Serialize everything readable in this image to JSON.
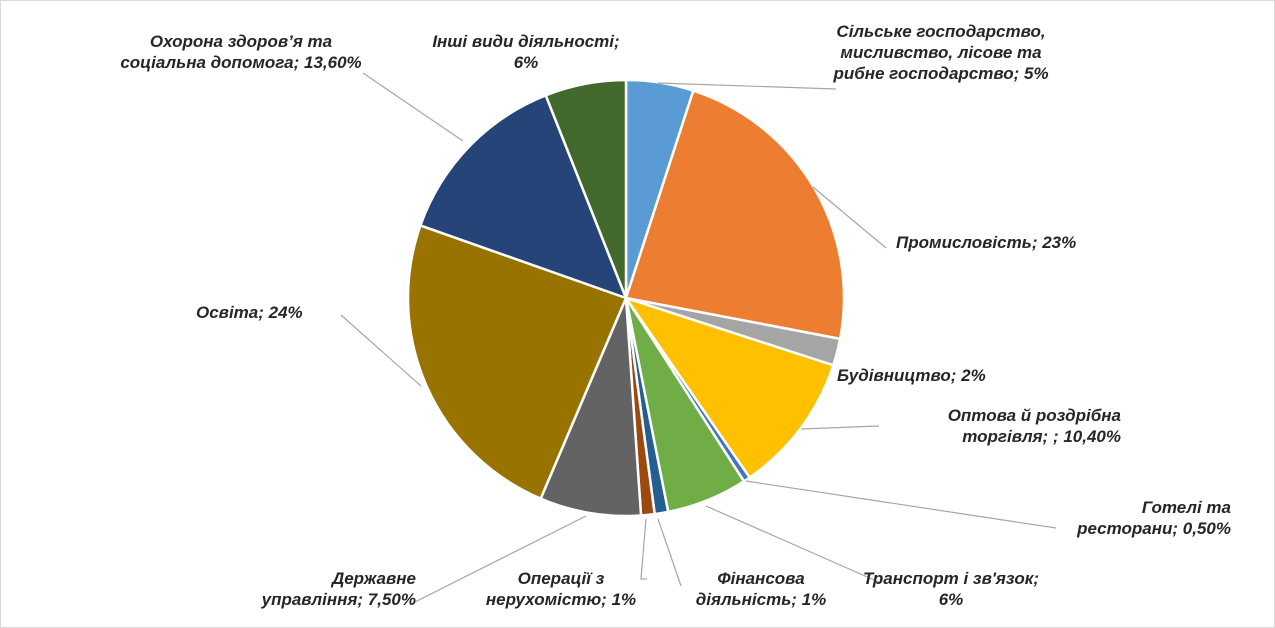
{
  "chart_data": {
    "type": "pie",
    "categories": [
      "Сільське господарство, мисливство, лісове та рибне господарство",
      "Промисловість",
      "Будівництво",
      "Оптова й роздрібна торгівля; ",
      "Готелі та ресторани",
      "Транспорт і зв'язок",
      "Фінансова діяльність",
      "Операції з нерухомістю",
      "Державне управління",
      "Освіта",
      "Охорона здоров’я та соціальна допомога",
      "Інші види діяльності"
    ],
    "values": [
      5,
      23,
      2,
      10.4,
      0.5,
      6,
      1,
      1,
      7.5,
      24,
      13.6,
      6
    ],
    "value_labels": [
      "5%",
      "23%",
      "2%",
      "10,40%",
      "0,50%",
      "6%",
      "1%",
      "1%",
      "7,50%",
      "24%",
      "13,60%",
      "6%"
    ],
    "label_separator": "; ",
    "colors": [
      "#5b9bd5",
      "#ed7d31",
      "#a5a5a5",
      "#ffc000",
      "#4472c4",
      "#70ad47",
      "#255e91",
      "#9e480e",
      "#636363",
      "#997300",
      "#264478",
      "#43682b"
    ]
  }
}
